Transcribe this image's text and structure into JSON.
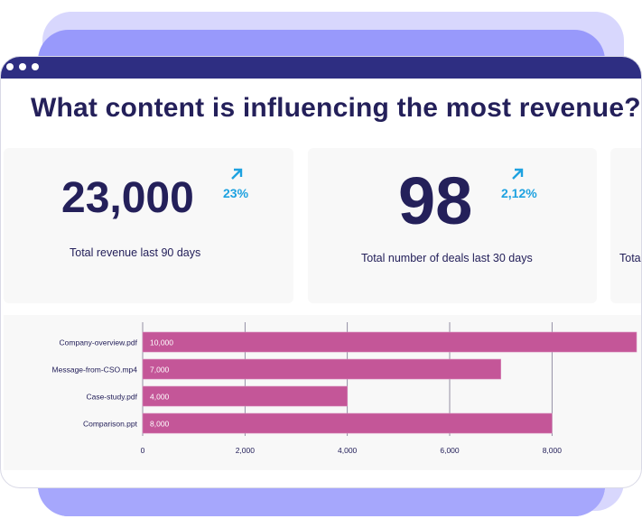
{
  "window": {
    "title": "What content is influencing the most revenue?"
  },
  "stats": [
    {
      "value": "23,000",
      "change": "23%",
      "trend_icon": "arrow-up-right-icon",
      "label": "Total revenue last 90 days"
    },
    {
      "value": "98",
      "change": "2,12%",
      "trend_icon": "arrow-up-right-icon",
      "label": "Total number of deals last 30 days"
    },
    {
      "label": "Total"
    }
  ],
  "colors": {
    "bar": "#c45698",
    "accent": "#1ea2e0",
    "titlebar": "#2e2e82",
    "text": "#24205a"
  },
  "chart_data": {
    "type": "bar",
    "orientation": "horizontal",
    "categories": [
      "Company-overview.pdf",
      "Message-from-CSO.mp4",
      "Case-study.pdf",
      "Comparison.ppt"
    ],
    "values": [
      10000,
      7000,
      4000,
      8000
    ],
    "data_labels": [
      "10,000",
      "7,000",
      "4,000",
      "8,000"
    ],
    "x_ticks": [
      "0",
      "2,000",
      "4,000",
      "6,000",
      "8,000"
    ],
    "xlim": [
      0,
      9600
    ],
    "grid": true,
    "xlabel": "",
    "ylabel": ""
  }
}
